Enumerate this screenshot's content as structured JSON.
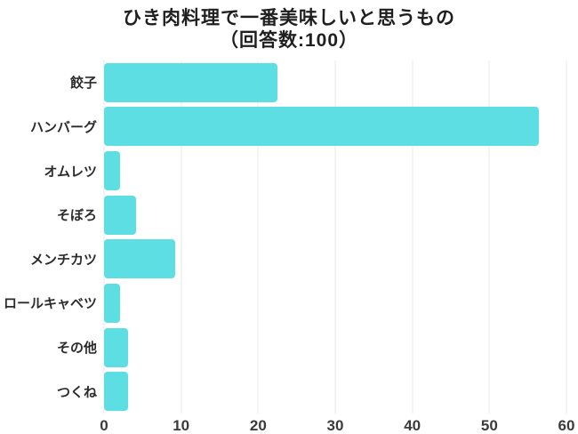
{
  "title": {
    "line1": "ひき肉料理で一番美味しいと思うもの",
    "line2": "（回答数:100）"
  },
  "chart_data": {
    "type": "bar",
    "orientation": "horizontal",
    "title": "ひき肉料理で一番美味しいと思うもの（回答数:100）",
    "subtitle": "（回答数:100）",
    "response_count": 100,
    "categories": [
      "餃子",
      "ハンバーグ",
      "オムレツ",
      "そぼろ",
      "メンチカツ",
      "ロールキャベツ",
      "その他",
      "つくね"
    ],
    "values": [
      22,
      55,
      2,
      4,
      9,
      2,
      3,
      3
    ],
    "xlabel": "",
    "ylabel": "",
    "xlim": [
      0,
      60
    ],
    "xticks": [
      0,
      10,
      20,
      30,
      40,
      50,
      60
    ],
    "grid": true,
    "legend": false,
    "colors": {
      "bar": "#5cdee2",
      "gridline": "#e8e8e8",
      "title_text": "#1f1f1f",
      "label_text": "#2b2b2b",
      "tick_text": "#3b3b3b",
      "background": "#ffffff"
    }
  }
}
